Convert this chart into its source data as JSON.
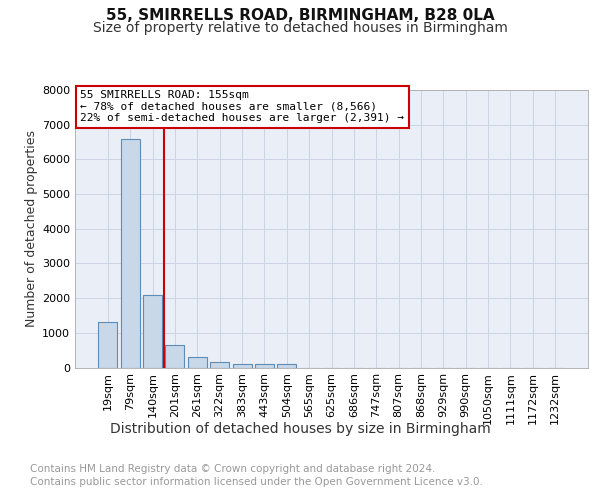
{
  "title": "55, SMIRRELLS ROAD, BIRMINGHAM, B28 0LA",
  "subtitle": "Size of property relative to detached houses in Birmingham",
  "xlabel": "Distribution of detached houses by size in Birmingham",
  "ylabel": "Number of detached properties",
  "annotation_line1": "55 SMIRRELLS ROAD: 155sqm",
  "annotation_line2": "← 78% of detached houses are smaller (8,566)",
  "annotation_line3": "22% of semi-detached houses are larger (2,391) →",
  "footnote1": "Contains HM Land Registry data © Crown copyright and database right 2024.",
  "footnote2": "Contains public sector information licensed under the Open Government Licence v3.0.",
  "bar_color": "#c8d8e8",
  "bar_edge_color": "#5b8db8",
  "red_line_x": 2.5,
  "categories": [
    "19sqm",
    "79sqm",
    "140sqm",
    "201sqm",
    "261sqm",
    "322sqm",
    "383sqm",
    "443sqm",
    "504sqm",
    "565sqm",
    "625sqm",
    "686sqm",
    "747sqm",
    "807sqm",
    "868sqm",
    "929sqm",
    "990sqm",
    "1050sqm",
    "1111sqm",
    "1172sqm",
    "1232sqm"
  ],
  "values": [
    1300,
    6600,
    2100,
    650,
    300,
    150,
    100,
    100,
    100,
    0,
    0,
    0,
    0,
    0,
    0,
    0,
    0,
    0,
    0,
    0,
    0
  ],
  "ylim": [
    0,
    8000
  ],
  "yticks": [
    0,
    1000,
    2000,
    3000,
    4000,
    5000,
    6000,
    7000,
    8000
  ],
  "grid_color": "#ccd4e4",
  "background_color": "#eaeff7",
  "title_fontsize": 11,
  "subtitle_fontsize": 10,
  "ylabel_fontsize": 9,
  "xlabel_fontsize": 10,
  "tick_fontsize": 8,
  "annotation_fontsize": 8,
  "footnote_fontsize": 7.5
}
